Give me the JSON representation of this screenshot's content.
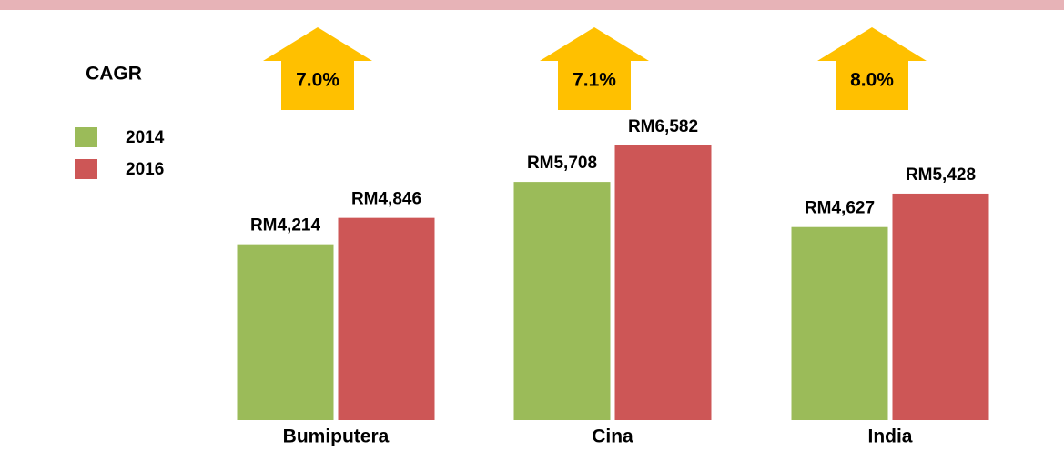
{
  "chart_data": {
    "type": "bar",
    "categories": [
      "Bumiputera",
      "Cina",
      "India"
    ],
    "series": [
      {
        "name": "2014",
        "color": "#9bbb59",
        "values": [
          4214,
          5708,
          4627
        ],
        "value_labels": [
          "RM4,214",
          "RM5,708",
          "RM4,627"
        ]
      },
      {
        "name": "2016",
        "color": "#cd5656",
        "values": [
          4846,
          6582,
          5428
        ],
        "value_labels": [
          "RM4,846",
          "RM6,582",
          "RM5,428"
        ]
      }
    ],
    "cagr": {
      "label": "CAGR",
      "color": "#ffc000",
      "values": [
        7.0,
        7.1,
        8.0
      ],
      "value_labels": [
        "7.0%",
        "7.1%",
        "8.0%"
      ]
    }
  }
}
